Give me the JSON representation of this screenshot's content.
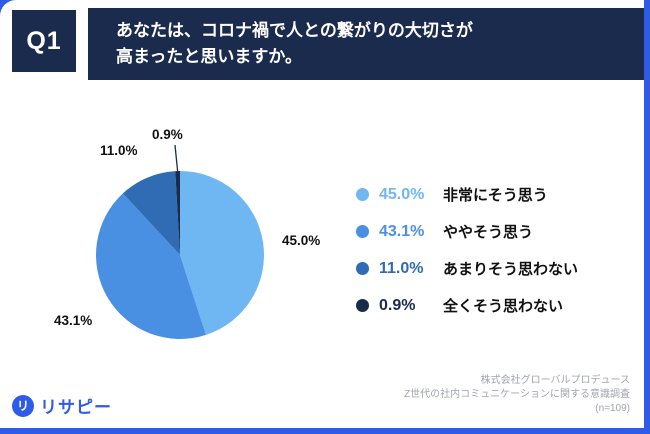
{
  "header": {
    "q_label": "Q1",
    "question_lines": [
      "あなたは、コロナ禍で人との繋がりの大切さが",
      "高まったと思いますか。"
    ]
  },
  "chart_data": {
    "type": "pie",
    "title": "あなたは、コロナ禍で人との繋がりの大切さが高まったと思いますか。",
    "labels": [
      "非常にそう思う",
      "ややそう思う",
      "あまりそう思わない",
      "全くそう思わない"
    ],
    "values": [
      45.0,
      43.1,
      11.0,
      0.9
    ],
    "value_labels": [
      "45.0%",
      "43.1%",
      "11.0%",
      "0.9%"
    ],
    "colors": [
      "#6FB7F2",
      "#4A90E2",
      "#2F6CB3",
      "#1B2B4D"
    ],
    "start_angle_deg": 0,
    "direction": "clockwise",
    "legend_position": "right"
  },
  "footer": {
    "credit_lines": [
      "株式会社グローバルプロデュース",
      "Z世代の社内コミュニケーションに関する意識調査",
      "(n=109)"
    ]
  },
  "logo": {
    "text": "リサピー",
    "icon_glyph": "リ"
  },
  "colors": {
    "frame": "#2E5BE8",
    "banner": "#1B2B4D",
    "q_box": "#1B2B4D",
    "logo": "#2E5BE8"
  }
}
